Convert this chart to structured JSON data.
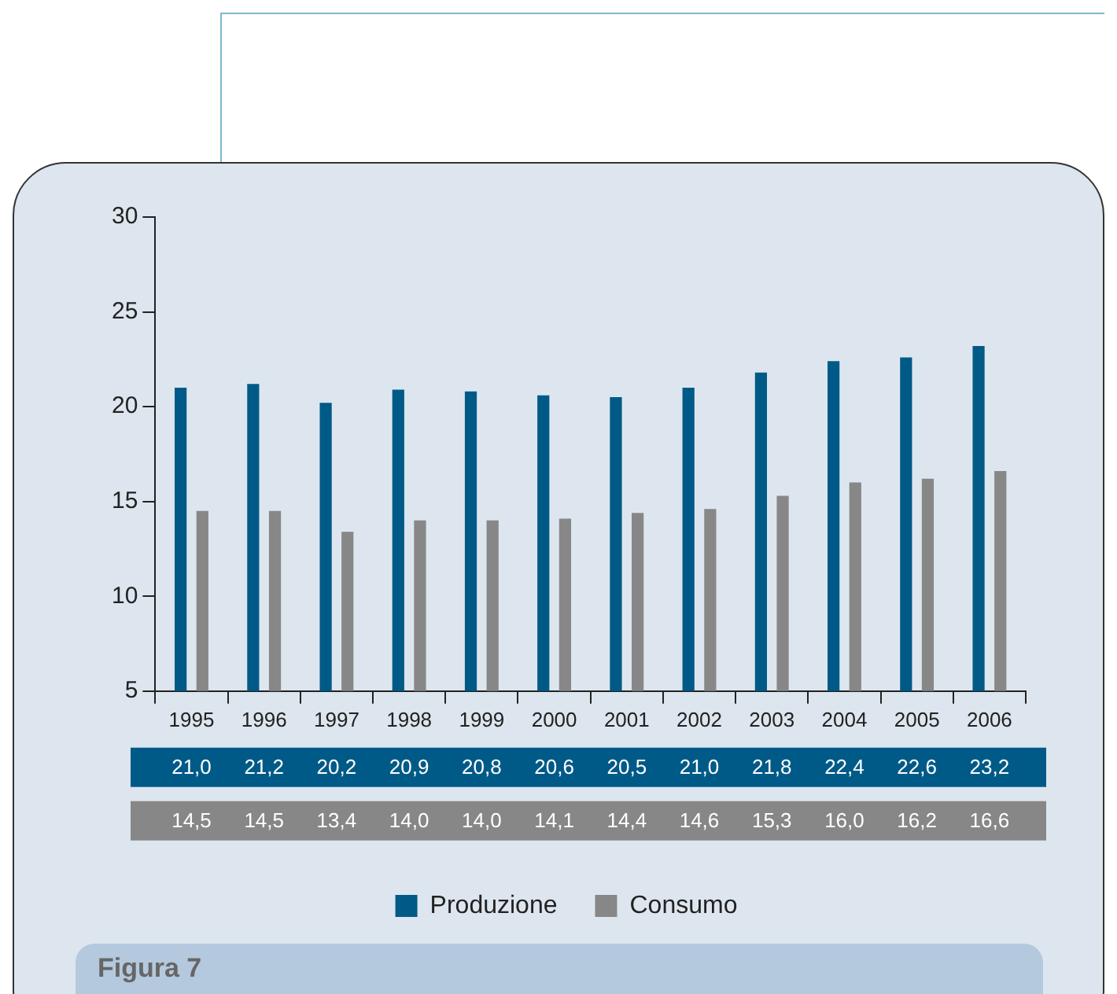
{
  "chart_data": {
    "type": "bar",
    "categories": [
      "1995",
      "1996",
      "1997",
      "1998",
      "1999",
      "2000",
      "2001",
      "2002",
      "2003",
      "2004",
      "2005",
      "2006"
    ],
    "series": [
      {
        "name": "Produzione",
        "color": "#005a87",
        "values": [
          21.0,
          21.2,
          20.2,
          20.9,
          20.8,
          20.6,
          20.5,
          21.0,
          21.8,
          22.4,
          22.6,
          23.2
        ],
        "value_labels": [
          "21,0",
          "21,2",
          "20,2",
          "20,9",
          "20,8",
          "20,6",
          "20,5",
          "21,0",
          "21,8",
          "22,4",
          "22,6",
          "23,2"
        ]
      },
      {
        "name": "Consumo",
        "color": "#878787",
        "values": [
          14.5,
          14.5,
          13.4,
          14.0,
          14.0,
          14.1,
          14.4,
          14.6,
          15.3,
          16.0,
          16.2,
          16.6
        ],
        "value_labels": [
          "14,5",
          "14,5",
          "13,4",
          "14,0",
          "14,0",
          "14,1",
          "14,4",
          "14,6",
          "15,3",
          "16,0",
          "16,2",
          "16,6"
        ]
      }
    ],
    "ylim": [
      5,
      30
    ],
    "yticks": [
      5,
      10,
      15,
      20,
      25,
      30
    ],
    "grid": false,
    "legend": "bottom",
    "annotations": [
      "Figura 7"
    ]
  }
}
